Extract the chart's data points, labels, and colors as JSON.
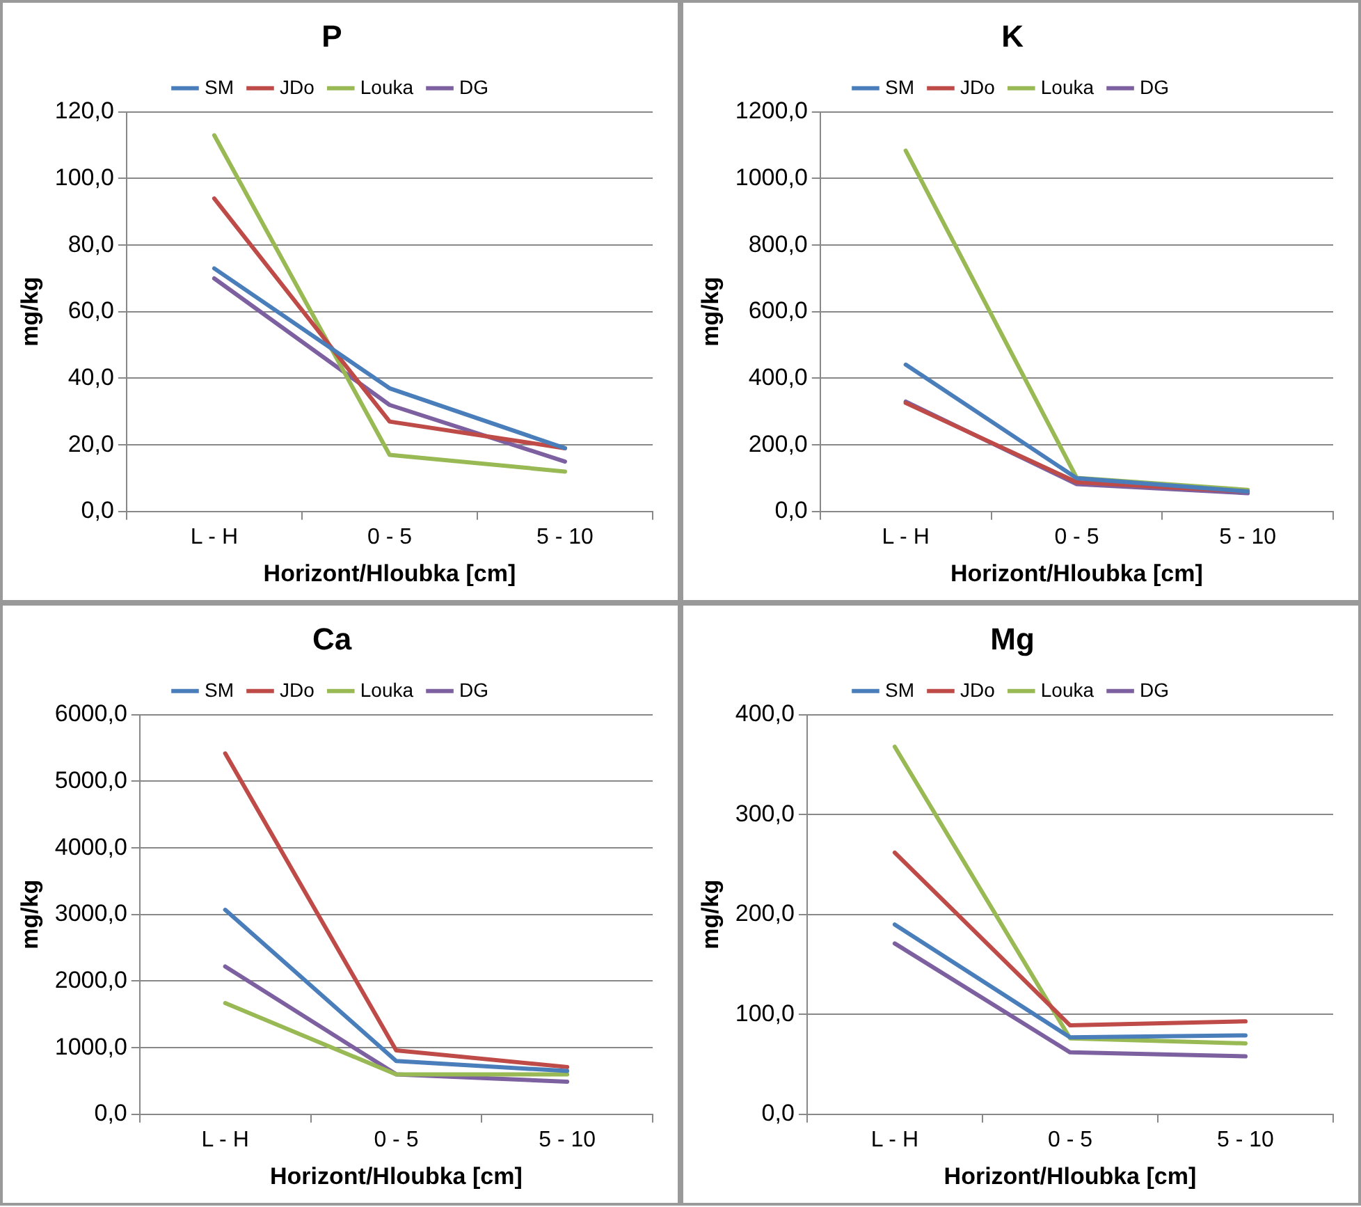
{
  "chart_data": [
    {
      "type": "line",
      "title": "P",
      "xlabel": "Horizont/Hloubka [cm]",
      "ylabel": "mg/kg",
      "categories": [
        "L - H",
        "0 - 5",
        "5 - 10"
      ],
      "ylim": [
        0,
        120
      ],
      "yticks": [
        {
          "value": 0,
          "label": "0,0"
        },
        {
          "value": 20,
          "label": "20,0"
        },
        {
          "value": 40,
          "label": "40,0"
        },
        {
          "value": 60,
          "label": "60,0"
        },
        {
          "value": 80,
          "label": "80,0"
        },
        {
          "value": 100,
          "label": "100,0"
        },
        {
          "value": 120,
          "label": "120,0"
        }
      ],
      "grid": "y",
      "legend": "top",
      "marker": "none",
      "line_style": "solid",
      "series": [
        {
          "name": "SM",
          "color": "#4a7ebb",
          "values": [
            73,
            37,
            19
          ]
        },
        {
          "name": "JDo",
          "color": "#be4b48",
          "values": [
            94,
            27,
            19
          ]
        },
        {
          "name": "Louka",
          "color": "#98b954",
          "values": [
            113,
            17,
            12
          ]
        },
        {
          "name": "DG",
          "color": "#7d60a0",
          "values": [
            70,
            32,
            15
          ]
        }
      ]
    },
    {
      "type": "line",
      "title": "K",
      "xlabel": "Horizont/Hloubka [cm]",
      "ylabel": "mg/kg",
      "categories": [
        "L - H",
        "0 - 5",
        "5 - 10"
      ],
      "ylim": [
        0,
        1200
      ],
      "yticks": [
        {
          "value": 0,
          "label": "0,0"
        },
        {
          "value": 200,
          "label": "200,0"
        },
        {
          "value": 400,
          "label": "400,0"
        },
        {
          "value": 600,
          "label": "600,0"
        },
        {
          "value": 800,
          "label": "800,0"
        },
        {
          "value": 1000,
          "label": "1000,0"
        },
        {
          "value": 1200,
          "label": "1200,0"
        }
      ],
      "grid": "y",
      "legend": "top",
      "marker": "none",
      "line_style": "solid",
      "series": [
        {
          "name": "SM",
          "color": "#4a7ebb",
          "values": [
            441,
            100,
            60
          ]
        },
        {
          "name": "JDo",
          "color": "#be4b48",
          "values": [
            326,
            88,
            60
          ]
        },
        {
          "name": "Louka",
          "color": "#98b954",
          "values": [
            1084,
            101,
            65
          ]
        },
        {
          "name": "DG",
          "color": "#7d60a0",
          "values": [
            330,
            82,
            55
          ]
        }
      ]
    },
    {
      "type": "line",
      "title": "Ca",
      "xlabel": "Horizont/Hloubka [cm]",
      "ylabel": "mg/kg",
      "categories": [
        "L - H",
        "0 - 5",
        "5 - 10"
      ],
      "ylim": [
        0,
        6000
      ],
      "yticks": [
        {
          "value": 0,
          "label": "0,0"
        },
        {
          "value": 1000,
          "label": "1000,0"
        },
        {
          "value": 2000,
          "label": "2000,0"
        },
        {
          "value": 3000,
          "label": "3000,0"
        },
        {
          "value": 4000,
          "label": "4000,0"
        },
        {
          "value": 5000,
          "label": "5000,0"
        },
        {
          "value": 6000,
          "label": "6000,0"
        }
      ],
      "grid": "y",
      "legend": "top",
      "marker": "none",
      "line_style": "solid",
      "series": [
        {
          "name": "SM",
          "color": "#4a7ebb",
          "values": [
            3070,
            800,
            650
          ]
        },
        {
          "name": "JDo",
          "color": "#be4b48",
          "values": [
            5420,
            960,
            710
          ]
        },
        {
          "name": "Louka",
          "color": "#98b954",
          "values": [
            1670,
            600,
            600
          ]
        },
        {
          "name": "DG",
          "color": "#7d60a0",
          "values": [
            2220,
            600,
            490
          ]
        }
      ]
    },
    {
      "type": "line",
      "title": "Mg",
      "xlabel": "Horizont/Hloubka [cm]",
      "ylabel": "mg/kg",
      "categories": [
        "L - H",
        "0 - 5",
        "5 - 10"
      ],
      "ylim": [
        0,
        400
      ],
      "yticks": [
        {
          "value": 0,
          "label": "0,0"
        },
        {
          "value": 100,
          "label": "100,0"
        },
        {
          "value": 200,
          "label": "200,0"
        },
        {
          "value": 300,
          "label": "300,0"
        },
        {
          "value": 400,
          "label": "400,0"
        }
      ],
      "grid": "y",
      "legend": "top",
      "marker": "none",
      "line_style": "solid",
      "series": [
        {
          "name": "SM",
          "color": "#4a7ebb",
          "values": [
            190,
            77,
            79
          ]
        },
        {
          "name": "JDo",
          "color": "#be4b48",
          "values": [
            262,
            89,
            93
          ]
        },
        {
          "name": "Louka",
          "color": "#98b954",
          "values": [
            368,
            76,
            71
          ]
        },
        {
          "name": "DG",
          "color": "#7d60a0",
          "values": [
            171,
            62,
            58
          ]
        }
      ]
    }
  ]
}
